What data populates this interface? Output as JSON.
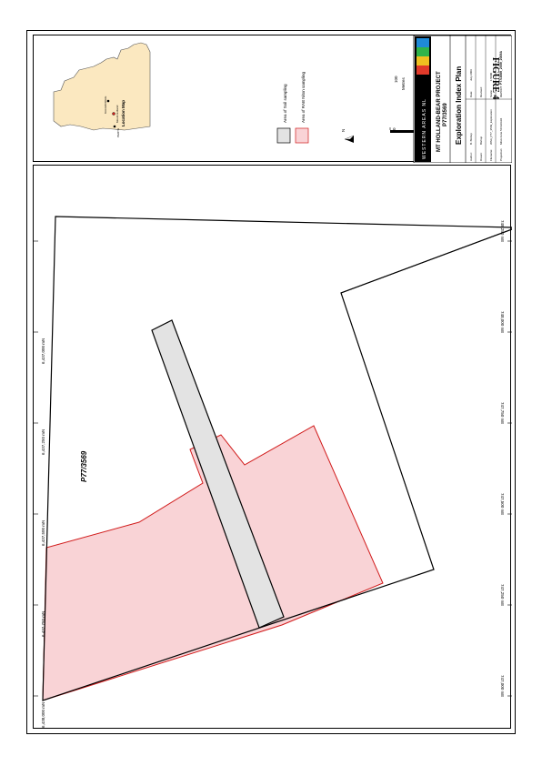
{
  "figure_label": "FIGURE 4",
  "title_block": {
    "company": "WESTERN AREAS NL",
    "project": "MT HOLLAND-BEAR PROJECT",
    "tenement": "P77/3569",
    "plan_title": "Exploration Index Plan",
    "author_label": "Author:",
    "author": "B. Bishop",
    "drawn_label": "Drawn:",
    "drawn": "Bishop",
    "date_label": "Date:",
    "date": "July 2009",
    "revised_label": "Revised:",
    "revised": "",
    "filename_label": "Filename:",
    "filename": "WSA_P77_3569_Exploration",
    "scale_label": "Scale:",
    "scale": "1:5000",
    "projection_label": "Projection:",
    "projection": "MGA Zone 50 GDA94",
    "report_label": "REPORT:",
    "report": "P77/3569_2009_2009A"
  },
  "legend": {
    "items": [
      {
        "label": "Area of Soil sampling",
        "color": "#e3e3e3",
        "stroke": "#000000"
      },
      {
        "label": "Area of RAB Niton sampling",
        "color": "#f9d3d6",
        "stroke": "#d11b1b"
      }
    ],
    "north": "N",
    "scale_ticks": [
      "0",
      "100",
      "200"
    ],
    "scale_unit": "Metres"
  },
  "location_map": {
    "title": "Location Map",
    "places": [
      "KALGOORLIE",
      "Mount Holland",
      "PERTH"
    ],
    "land_color": "#fbe8c0"
  },
  "map": {
    "tenement_label": "P77/3569",
    "northings": [
      "6,438,000 mN",
      "6,437,750 mN",
      "6,437,500 mN",
      "6,437,250 mN",
      "6,437,000 mN"
    ],
    "eastings": [
      "747,000 mE",
      "747,250 mE",
      "747,500 mE",
      "747,750 mE",
      "748,000 mE",
      "748,250 mE"
    ]
  }
}
